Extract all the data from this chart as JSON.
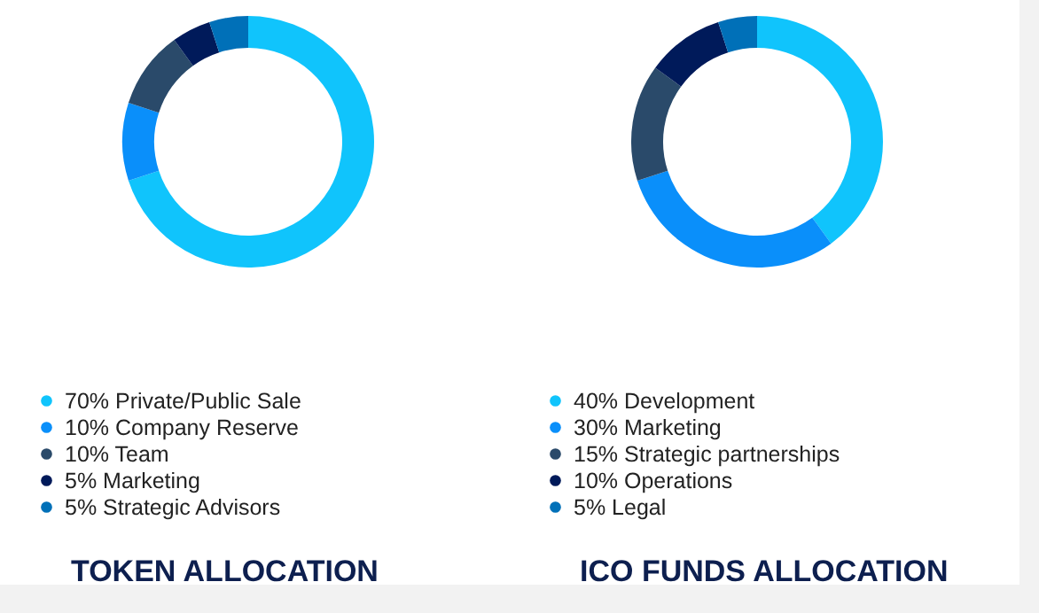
{
  "chart_data": [
    {
      "type": "donut",
      "title": "TOKEN ALLOCATION",
      "categories": [
        "Private/Public Sale",
        "Company Reserve",
        "Team",
        "Marketing",
        "Strategic Advisors"
      ],
      "values": [
        70,
        10,
        10,
        5,
        5
      ],
      "value_labels": [
        "70%",
        "10%",
        "10%",
        "5%",
        "5%"
      ],
      "colors": [
        "#10c4fc",
        "#0a8ffa",
        "#2a4a6a",
        "#001a5a",
        "#0070b8"
      ],
      "legend": "bottom"
    },
    {
      "type": "donut",
      "title": "ICO FUNDS ALLOCATION",
      "categories": [
        "Development",
        "Marketing",
        "Strategic partnerships",
        "Operations",
        "Legal"
      ],
      "values": [
        40,
        30,
        15,
        10,
        5
      ],
      "value_labels": [
        "40%",
        "30%",
        "15%",
        "10%",
        "5%"
      ],
      "colors": [
        "#10c4fc",
        "#0a8ffa",
        "#2a4a6a",
        "#001a5a",
        "#0070b8"
      ],
      "legend": "bottom"
    }
  ]
}
